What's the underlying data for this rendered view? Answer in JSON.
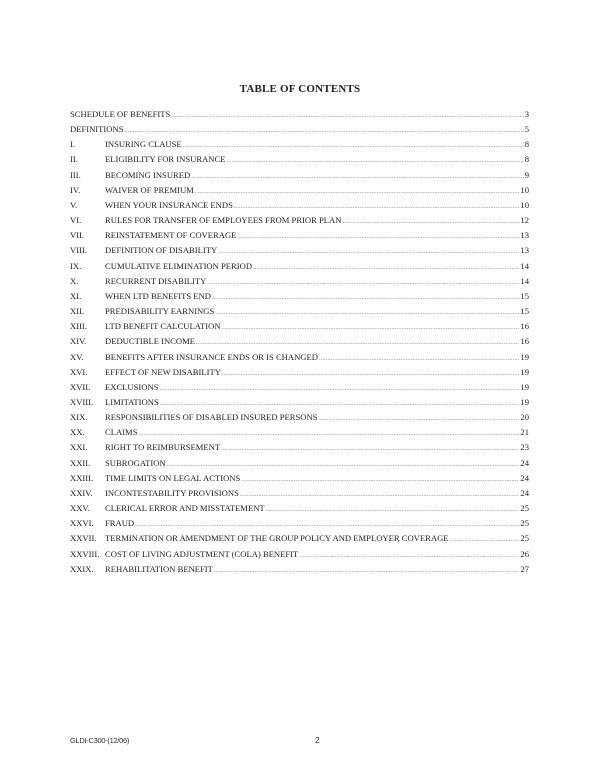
{
  "title": "TABLE OF CONTENTS",
  "entries": [
    {
      "num": "",
      "text": "SCHEDULE OF BENEFITS",
      "page": "3"
    },
    {
      "num": "",
      "text": "DEFINITIONS",
      "page": "5"
    },
    {
      "num": "I.",
      "text": "INSURING CLAUSE",
      "page": "8"
    },
    {
      "num": "II.",
      "text": "ELIGIBILITY FOR INSURANCE",
      "page": "8"
    },
    {
      "num": "III.",
      "text": "BECOMING INSURED",
      "page": "9"
    },
    {
      "num": "IV.",
      "text": "WAIVER OF PREMIUM",
      "page": "10"
    },
    {
      "num": "V.",
      "text": "WHEN YOUR INSURANCE ENDS",
      "page": "10"
    },
    {
      "num": "VI.",
      "text": "RULES FOR TRANSFER OF EMPLOYEES FROM PRIOR PLAN",
      "page": "12"
    },
    {
      "num": "VII.",
      "text": "REINSTATEMENT OF COVERAGE",
      "page": "13"
    },
    {
      "num": "VIII.",
      "text": "DEFINITION OF DISABILITY",
      "page": "13"
    },
    {
      "num": "IX.",
      "text": "CUMULATIVE ELIMINATION PERIOD",
      "page": "14"
    },
    {
      "num": "X.",
      "text": "RECURRENT DISABILITY",
      "page": "14"
    },
    {
      "num": "XI.",
      "text": "WHEN LTD BENEFITS END",
      "page": "15"
    },
    {
      "num": "XII.",
      "text": "PREDISABILITY EARNINGS",
      "page": "15"
    },
    {
      "num": "XIII.",
      "text": "LTD BENEFIT CALCULATION",
      "page": "16"
    },
    {
      "num": "XIV.",
      "text": "DEDUCTIBLE INCOME",
      "page": "16"
    },
    {
      "num": "XV.",
      "text": "BENEFITS AFTER INSURANCE ENDS OR IS CHANGED",
      "page": "19"
    },
    {
      "num": "XVI.",
      "text": "EFFECT OF NEW DISABILITY",
      "page": "19"
    },
    {
      "num": "XVII.",
      "text": "EXCLUSIONS",
      "page": "19"
    },
    {
      "num": "XVIII.",
      "text": "LIMITATIONS",
      "page": "19"
    },
    {
      "num": "XIX.",
      "text": "RESPONSIBILITIES OF DISABLED INSURED PERSONS",
      "page": "20"
    },
    {
      "num": "XX.",
      "text": "CLAIMS",
      "page": "21"
    },
    {
      "num": "XXI.",
      "text": "RIGHT TO REIMBURSEMENT",
      "page": "23"
    },
    {
      "num": "XXII.",
      "text": "SUBROGATION",
      "page": "24"
    },
    {
      "num": "XXIII.",
      "text": "TIME LIMITS ON LEGAL ACTIONS",
      "page": "24"
    },
    {
      "num": "XXIV.",
      "text": "INCONTESTABILITY PROVISIONS",
      "page": "24"
    },
    {
      "num": "XXV.",
      "text": "CLERICAL ERROR AND MISSTATEMENT",
      "page": "25"
    },
    {
      "num": "XXVI.",
      "text": "FRAUD",
      "page": "25"
    },
    {
      "num": "XXVII.",
      "text": "TERMINATION OR AMENDMENT OF THE GROUP POLICY AND EMPLOYER COVERAGE",
      "page": "25"
    },
    {
      "num": "XXVIII.",
      "text": "COST OF LIVING ADJUSTMENT (COLA) BENEFIT",
      "page": "26"
    },
    {
      "num": "XXIX.",
      "text": "REHABILITATION BENEFIT",
      "page": "27"
    }
  ],
  "footer": {
    "form_code": "GLDI-C300-(12/06)",
    "page_number": "2"
  }
}
